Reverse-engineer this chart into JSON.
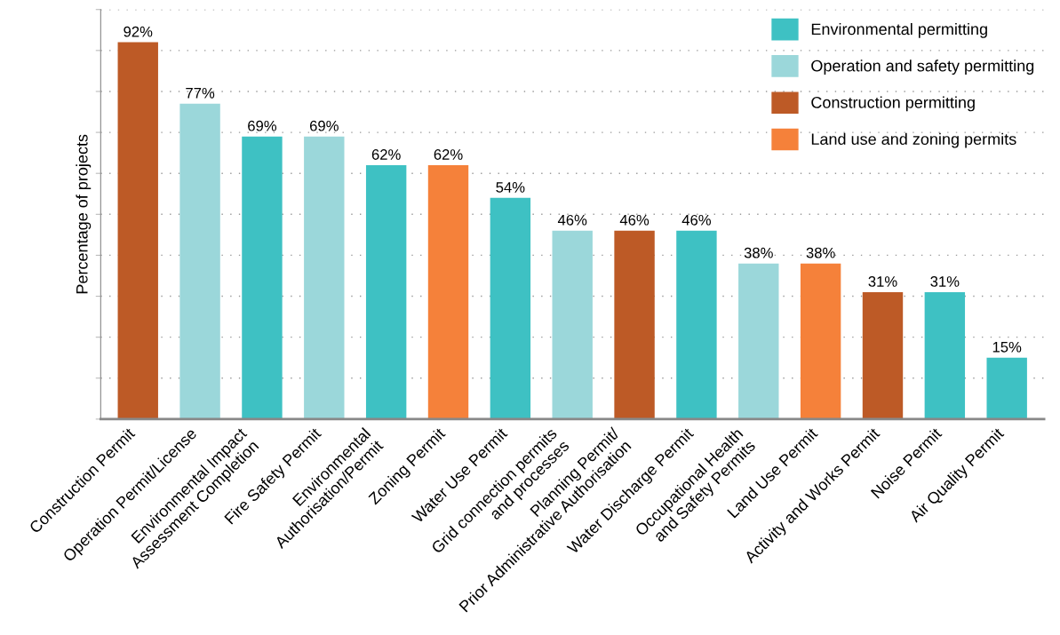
{
  "chart_data": {
    "type": "bar",
    "ylabel": "Percentage of projects",
    "categories": [
      "Construction Permit",
      "Operation Permit/License",
      "Environmental Impact\nAssessment Completion",
      "Fire Safety Permit",
      "Environmental\nAuthorisation/Permit",
      "Zoning Permit",
      "Water Use Permit",
      "Grid connection permits\nand processes",
      "Planning Permit/\nPrior Administrative Authorisation",
      "Water Discharge Permit",
      "Occupational Health\nand Safety Permits",
      "Land Use Permit",
      "Activity and Works Permit",
      "Noise Permit",
      "Air Quality Permit"
    ],
    "series": [
      {
        "name": "Environmental permitting",
        "color": "#3ec1c3",
        "values": [
          null,
          null,
          69,
          null,
          62,
          null,
          54,
          null,
          null,
          46,
          null,
          null,
          null,
          31,
          15
        ],
        "value_labels": [
          null,
          null,
          "69%",
          null,
          "62%",
          null,
          "54%",
          null,
          null,
          "46%",
          null,
          null,
          null,
          "31%",
          "15%"
        ]
      },
      {
        "name": "Operation and safety permitting",
        "color": "#9bd7da",
        "values": [
          null,
          77,
          null,
          69,
          null,
          null,
          null,
          46,
          null,
          null,
          38,
          null,
          null,
          null,
          null
        ],
        "value_labels": [
          null,
          "77%",
          null,
          "69%",
          null,
          null,
          null,
          "46%",
          null,
          null,
          "38%",
          null,
          null,
          null,
          null
        ]
      },
      {
        "name": "Construction permitting",
        "color": "#bd5a26",
        "values": [
          92,
          null,
          null,
          null,
          null,
          null,
          null,
          null,
          46,
          null,
          null,
          null,
          31,
          null,
          null
        ],
        "value_labels": [
          "92%",
          null,
          null,
          null,
          null,
          null,
          null,
          null,
          "46%",
          null,
          null,
          null,
          "31%",
          null,
          null
        ]
      },
      {
        "name": "Land use and zoning permits",
        "color": "#f5813a",
        "values": [
          null,
          null,
          null,
          null,
          null,
          62,
          null,
          null,
          null,
          null,
          null,
          38,
          null,
          null,
          null
        ],
        "value_labels": [
          null,
          null,
          null,
          null,
          null,
          "62%",
          null,
          null,
          null,
          null,
          null,
          "38%",
          null,
          null,
          null
        ]
      }
    ],
    "ylim": [
      0,
      100
    ],
    "yticks": [
      {
        "value": 0,
        "label": null
      },
      {
        "value": 10,
        "label": null
      },
      {
        "value": 20,
        "label": null
      },
      {
        "value": 30,
        "label": null
      },
      {
        "value": 40,
        "label": null
      },
      {
        "value": 50,
        "label": null
      },
      {
        "value": 60,
        "label": null
      },
      {
        "value": 70,
        "label": null
      },
      {
        "value": 80,
        "label": null
      },
      {
        "value": 90,
        "label": null
      },
      {
        "value": 100,
        "label": null
      }
    ],
    "tick_labels": "x",
    "grid": "y",
    "legend": "top right"
  }
}
